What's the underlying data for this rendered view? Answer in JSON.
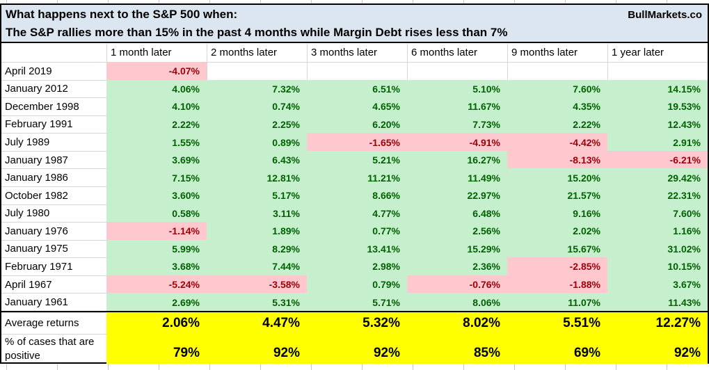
{
  "header": {
    "line1": "What happens next to the S&P 500 when:",
    "line2": "The S&P rallies more than 15% in the past 4 months while Margin Debt rises less than 7%",
    "brand": "BullMarkets.co"
  },
  "table": {
    "columns": [
      "1 month later",
      "2 months later",
      "3 months later",
      "6 months later",
      "9 months later",
      "1 year later"
    ],
    "rows": [
      {
        "label": "April 2019",
        "values": [
          "-4.07%",
          "",
          "",
          "",
          "",
          ""
        ]
      },
      {
        "label": "January 2012",
        "values": [
          "4.06%",
          "7.32%",
          "6.51%",
          "5.10%",
          "7.60%",
          "14.15%"
        ]
      },
      {
        "label": "December 1998",
        "values": [
          "4.10%",
          "0.74%",
          "4.65%",
          "11.67%",
          "4.35%",
          "19.53%"
        ]
      },
      {
        "label": "February 1991",
        "values": [
          "2.22%",
          "2.25%",
          "6.20%",
          "7.73%",
          "2.22%",
          "12.43%"
        ]
      },
      {
        "label": "July 1989",
        "values": [
          "1.55%",
          "0.89%",
          "-1.65%",
          "-4.91%",
          "-4.42%",
          "2.91%"
        ]
      },
      {
        "label": "January 1987",
        "values": [
          "3.69%",
          "6.43%",
          "5.21%",
          "16.27%",
          "-8.13%",
          "-6.21%"
        ]
      },
      {
        "label": "January 1986",
        "values": [
          "7.15%",
          "12.81%",
          "11.21%",
          "11.49%",
          "15.20%",
          "29.42%"
        ]
      },
      {
        "label": "October 1982",
        "values": [
          "3.60%",
          "5.17%",
          "8.66%",
          "22.97%",
          "21.57%",
          "22.31%"
        ]
      },
      {
        "label": "July 1980",
        "values": [
          "0.58%",
          "3.11%",
          "4.77%",
          "6.48%",
          "9.16%",
          "7.60%"
        ]
      },
      {
        "label": "January 1976",
        "values": [
          "-1.14%",
          "1.89%",
          "0.77%",
          "2.56%",
          "2.02%",
          "1.16%"
        ]
      },
      {
        "label": "January 1975",
        "values": [
          "5.99%",
          "8.29%",
          "13.41%",
          "15.29%",
          "15.67%",
          "31.02%"
        ]
      },
      {
        "label": "February 1971",
        "values": [
          "3.68%",
          "7.44%",
          "2.98%",
          "2.36%",
          "-2.85%",
          "10.15%"
        ]
      },
      {
        "label": "April 1967",
        "values": [
          "-5.24%",
          "-3.58%",
          "0.79%",
          "-0.76%",
          "-1.88%",
          "3.67%"
        ]
      },
      {
        "label": "January 1961",
        "values": [
          "2.69%",
          "5.31%",
          "5.71%",
          "8.06%",
          "11.07%",
          "11.43%"
        ]
      }
    ],
    "average": {
      "label": "Average returns",
      "values": [
        "2.06%",
        "4.47%",
        "5.32%",
        "8.02%",
        "5.51%",
        "12.27%"
      ]
    },
    "positive": {
      "label": "% of cases that are positive",
      "values": [
        "79%",
        "92%",
        "92%",
        "85%",
        "69%",
        "92%"
      ]
    }
  },
  "colors": {
    "title-bg": "#DCE6F1",
    "green-fill": "#C6EFCE",
    "green-text": "#006100",
    "pink-fill": "#FFC7CE",
    "red-text": "#9C0006",
    "yellow": "#FFFF00"
  },
  "chart_data": {
    "type": "table",
    "title": "What happens next to the S&P 500 when: The S&P rallies more than 15% in the past 4 months while Margin Debt rises less than 7%",
    "source": "BullMarkets.co",
    "columns": [
      "1 month later",
      "2 months later",
      "3 months later",
      "6 months later",
      "9 months later",
      "1 year later"
    ],
    "rows": [
      {
        "label": "April 2019",
        "values_pct": [
          -4.07,
          null,
          null,
          null,
          null,
          null
        ]
      },
      {
        "label": "January 2012",
        "values_pct": [
          4.06,
          7.32,
          6.51,
          5.1,
          7.6,
          14.15
        ]
      },
      {
        "label": "December 1998",
        "values_pct": [
          4.1,
          0.74,
          4.65,
          11.67,
          4.35,
          19.53
        ]
      },
      {
        "label": "February 1991",
        "values_pct": [
          2.22,
          2.25,
          6.2,
          7.73,
          2.22,
          12.43
        ]
      },
      {
        "label": "July 1989",
        "values_pct": [
          1.55,
          0.89,
          -1.65,
          -4.91,
          -4.42,
          2.91
        ]
      },
      {
        "label": "January 1987",
        "values_pct": [
          3.69,
          6.43,
          5.21,
          16.27,
          -8.13,
          -6.21
        ]
      },
      {
        "label": "January 1986",
        "values_pct": [
          7.15,
          12.81,
          11.21,
          11.49,
          15.2,
          29.42
        ]
      },
      {
        "label": "October 1982",
        "values_pct": [
          3.6,
          5.17,
          8.66,
          22.97,
          21.57,
          22.31
        ]
      },
      {
        "label": "July 1980",
        "values_pct": [
          0.58,
          3.11,
          4.77,
          6.48,
          9.16,
          7.6
        ]
      },
      {
        "label": "January 1976",
        "values_pct": [
          -1.14,
          1.89,
          0.77,
          2.56,
          2.02,
          1.16
        ]
      },
      {
        "label": "January 1975",
        "values_pct": [
          5.99,
          8.29,
          13.41,
          15.29,
          15.67,
          31.02
        ]
      },
      {
        "label": "February 1971",
        "values_pct": [
          3.68,
          7.44,
          2.98,
          2.36,
          -2.85,
          10.15
        ]
      },
      {
        "label": "April 1967",
        "values_pct": [
          -5.24,
          -3.58,
          0.79,
          -0.76,
          -1.88,
          3.67
        ]
      },
      {
        "label": "January 1961",
        "values_pct": [
          2.69,
          5.31,
          5.71,
          8.06,
          11.07,
          11.43
        ]
      }
    ],
    "average_returns_pct": [
      2.06,
      4.47,
      5.32,
      8.02,
      5.51,
      12.27
    ],
    "percent_of_cases_positive": [
      79,
      92,
      92,
      85,
      69,
      92
    ],
    "cell_coloring": "green fill for positive returns, pink fill for negative returns, yellow fill for summary rows"
  }
}
